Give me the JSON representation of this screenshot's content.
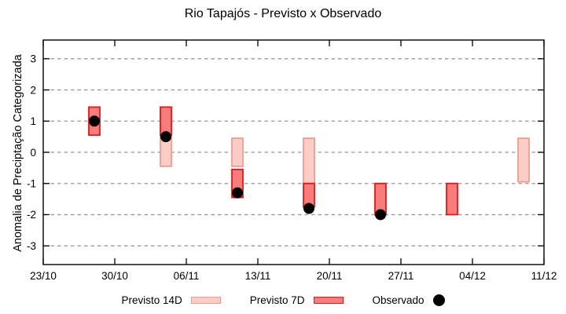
{
  "title": "Rio Tapajós - Previsto x Observado",
  "chart_data": {
    "type": "bar",
    "subtype": "range-bars-with-observed-scatter",
    "title": "Rio Tapajós - Previsto x Observado",
    "xlabel": "",
    "ylabel": "Anomalia de Preciptação Categorizada",
    "ylim": [
      -3.6,
      3.6
    ],
    "yticks": [
      -3,
      -2,
      -1,
      0,
      1,
      2,
      3
    ],
    "x_tick_labels": [
      "23/10",
      "30/10",
      "06/11",
      "13/11",
      "20/11",
      "27/11",
      "04/12",
      "11/12"
    ],
    "x_tick_interval_days": 7,
    "x_total_days": 49,
    "grid": "horizontal-dashed",
    "legend_position": "bottom-center",
    "colors": {
      "previsto14_fill": "#fbcdc5",
      "previsto14_stroke": "#ef9c8e",
      "previsto7_fill": "#f97c7c",
      "previsto7_stroke": "#e41818",
      "observado": "#000000",
      "grid": "#999999",
      "axis": "#000000"
    },
    "series": [
      {
        "name": "Previsto 14D",
        "type": "range-bar"
      },
      {
        "name": "Previsto 7D",
        "type": "range-bar"
      },
      {
        "name": "Observado",
        "type": "scatter"
      }
    ],
    "points": [
      {
        "date": "28/10",
        "day": 5,
        "previsto14": null,
        "previsto7": [
          0.55,
          1.45
        ],
        "observado": 1.0
      },
      {
        "date": "04/11",
        "day": 12,
        "previsto14": [
          -0.45,
          1.45
        ],
        "previsto7": [
          0.55,
          1.45
        ],
        "observado": 0.5
      },
      {
        "date": "11/11",
        "day": 19,
        "previsto14": [
          -0.45,
          0.45
        ],
        "previsto7": [
          -1.45,
          -0.55
        ],
        "observado": -1.3
      },
      {
        "date": "18/11",
        "day": 26,
        "previsto14": [
          -1.0,
          0.45
        ],
        "previsto7": [
          -1.75,
          -1.0
        ],
        "observado": -1.8
      },
      {
        "date": "25/11",
        "day": 33,
        "previsto14": null,
        "previsto7": [
          -2.0,
          -1.0
        ],
        "observado": -2.0
      },
      {
        "date": "02/12",
        "day": 40,
        "previsto14": null,
        "previsto7": [
          -2.0,
          -1.0
        ],
        "observado": null
      },
      {
        "date": "09/12",
        "day": 47,
        "previsto14": [
          -0.95,
          0.45
        ],
        "previsto7": null,
        "observado": null
      }
    ],
    "legend": [
      {
        "label": "Previsto 14D",
        "swatch": "box-light"
      },
      {
        "label": "Previsto 7D",
        "swatch": "box-dark"
      },
      {
        "label": "Observado",
        "swatch": "dot"
      }
    ]
  }
}
